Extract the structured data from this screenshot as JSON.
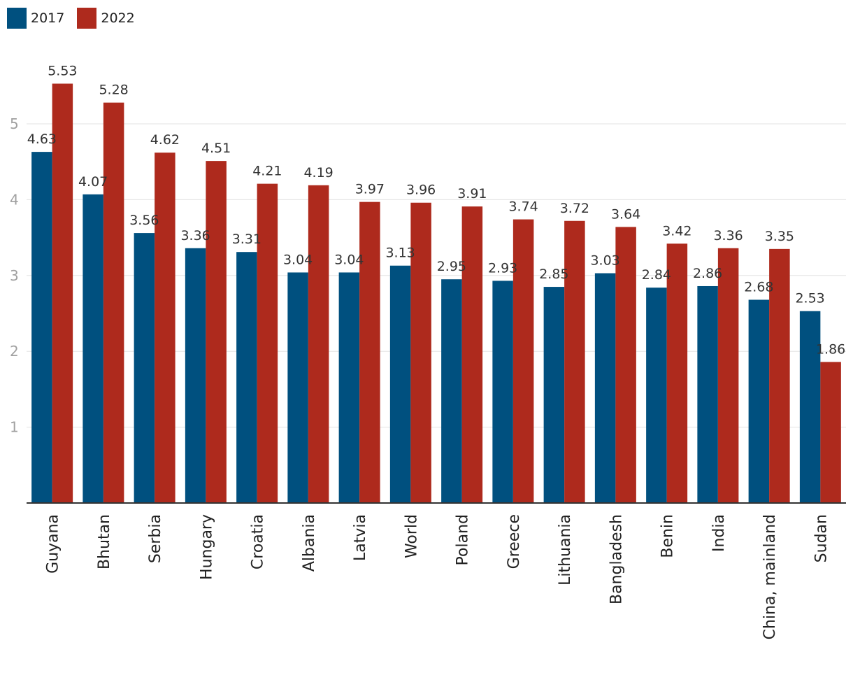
{
  "chart_data": {
    "type": "bar",
    "categories": [
      "Guyana",
      "Bhutan",
      "Serbia",
      "Hungary",
      "Croatia",
      "Albania",
      "Latvia",
      "World",
      "Poland",
      "Greece",
      "Lithuania",
      "Bangladesh",
      "Benin",
      "India",
      "China, mainland",
      "Sudan"
    ],
    "series": [
      {
        "name": "2017",
        "color": "#00507f",
        "values": [
          4.63,
          4.07,
          3.56,
          3.36,
          3.31,
          3.04,
          3.04,
          3.13,
          2.95,
          2.93,
          2.85,
          3.03,
          2.84,
          2.86,
          2.68,
          2.53
        ]
      },
      {
        "name": "2022",
        "color": "#ae2a1d",
        "values": [
          5.53,
          5.28,
          4.62,
          4.51,
          4.21,
          4.19,
          3.97,
          3.96,
          3.91,
          3.74,
          3.72,
          3.64,
          3.42,
          3.36,
          3.35,
          1.86
        ]
      }
    ],
    "yticks": [
      1,
      2,
      3,
      4,
      5
    ],
    "ylim": [
      0,
      5.95
    ],
    "grid": true,
    "legend_position": "top-left",
    "title": "",
    "xlabel": "",
    "ylabel": ""
  }
}
